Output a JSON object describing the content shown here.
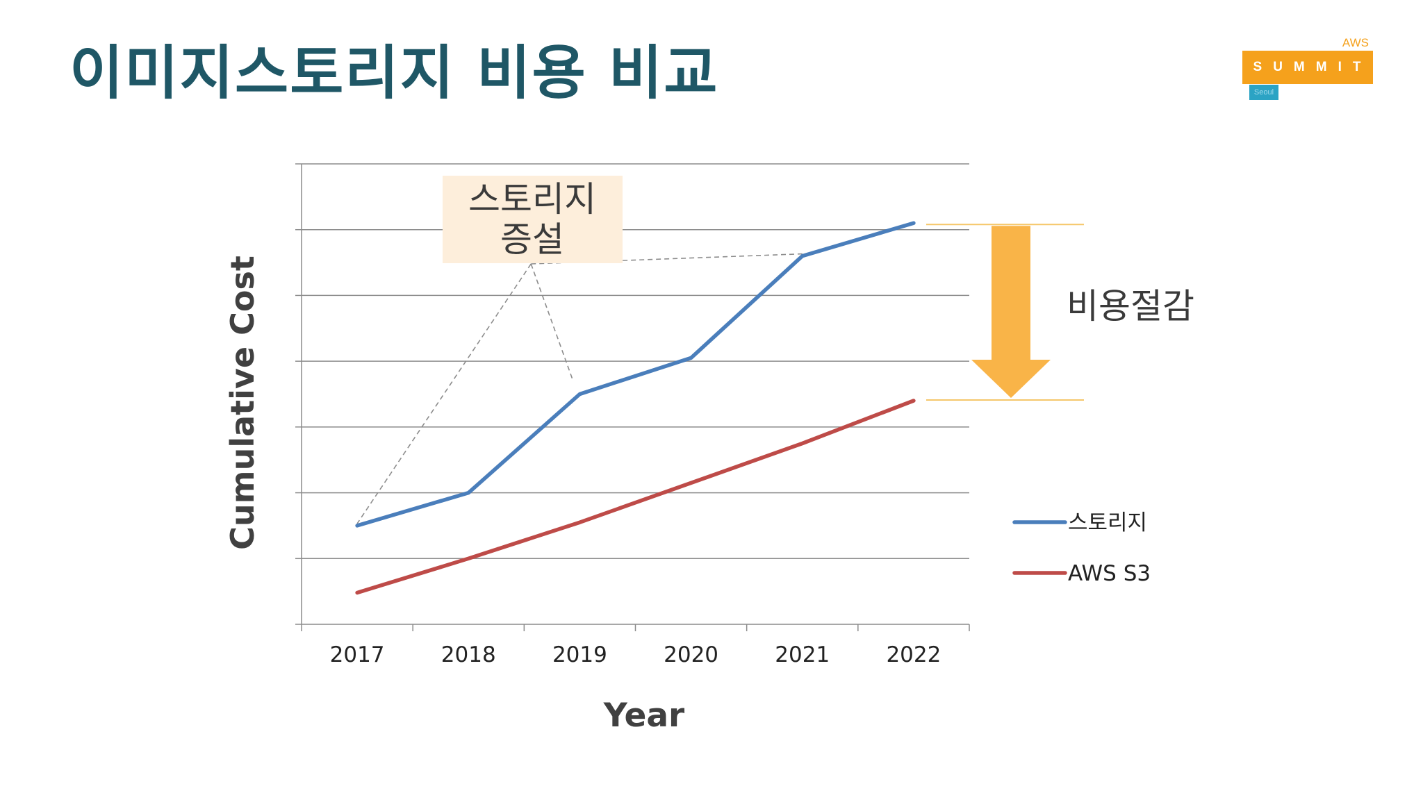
{
  "slide": {
    "title": "이미지스토리지 비용 비교"
  },
  "logo": {
    "top_text": "AWS",
    "main_text": "SUMMIT",
    "city": "Seoul"
  },
  "chart_data": {
    "type": "line",
    "xlabel": "Year",
    "ylabel": "Cumulative Cost",
    "categories": [
      "2017",
      "2018",
      "2019",
      "2020",
      "2021",
      "2022"
    ],
    "ylim": [
      0,
      7
    ],
    "y_gridlines": 7,
    "y_tick_labels_shown": false,
    "grid": true,
    "legend": "right",
    "series": [
      {
        "name": "스토리지",
        "color": "#4a7ebb",
        "values": [
          1.5,
          2.0,
          3.5,
          4.05,
          5.6,
          6.1
        ]
      },
      {
        "name": "AWS S3",
        "color": "#be4b48",
        "values": [
          0.48,
          1.0,
          1.55,
          2.15,
          2.75,
          3.4
        ]
      }
    ],
    "annotations": [
      {
        "text_lines": [
          "스토리지",
          "증설"
        ],
        "points_to": [
          "2017",
          "2019",
          "2021"
        ],
        "box_color": "#fdeedb"
      },
      {
        "text": "비용절감",
        "arrow_color": "#f9b448",
        "marker_color": "#f5c76a",
        "from_series": "스토리지",
        "to_series": "AWS S3",
        "at": "2022"
      }
    ]
  }
}
